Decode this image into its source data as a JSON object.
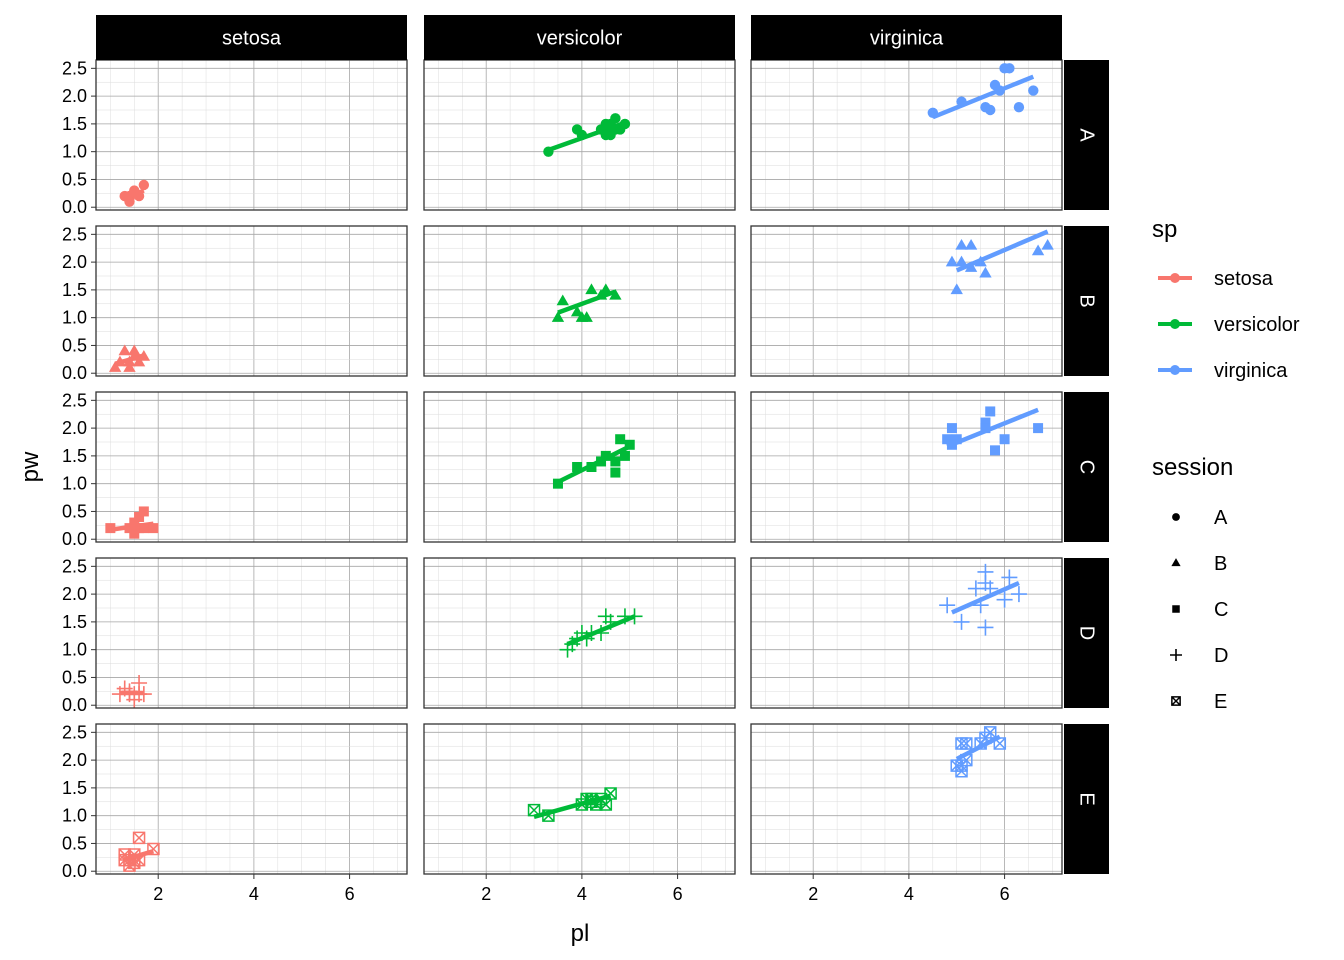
{
  "chart_data": {
    "type": "scatter",
    "xlabel": "pl",
    "ylabel": "pw",
    "xlim": [
      0.7,
      7.2
    ],
    "ylim": [
      -0.05,
      2.65
    ],
    "x_ticks": [
      2,
      4,
      6
    ],
    "y_ticks": [
      0.0,
      0.5,
      1.0,
      1.5,
      2.0,
      2.5
    ],
    "y_tick_labels": [
      "0.0",
      "0.5",
      "1.0",
      "1.5",
      "2.0",
      "2.5"
    ],
    "x_tick_labels": [
      "2",
      "4",
      "6"
    ],
    "col_facets": [
      "setosa",
      "versicolor",
      "virginica"
    ],
    "row_facets": [
      "A",
      "B",
      "C",
      "D",
      "E"
    ],
    "grid": true,
    "legend_placement": "right",
    "legends": {
      "color": {
        "title": "sp",
        "items": [
          {
            "label": "setosa",
            "color": "#F8766D"
          },
          {
            "label": "versicolor",
            "color": "#00BA38"
          },
          {
            "label": "virginica",
            "color": "#619CFF"
          }
        ]
      },
      "shape": {
        "title": "session",
        "items": [
          {
            "label": "A",
            "shape": "circle"
          },
          {
            "label": "B",
            "shape": "triangle"
          },
          {
            "label": "C",
            "shape": "square"
          },
          {
            "label": "D",
            "shape": "plus"
          },
          {
            "label": "E",
            "shape": "square-cross"
          }
        ]
      }
    },
    "panels": [
      {
        "row": "A",
        "col": "setosa",
        "color": "#F8766D",
        "shape": "circle",
        "points": [
          [
            1.3,
            0.2
          ],
          [
            1.4,
            0.2
          ],
          [
            1.5,
            0.3
          ],
          [
            1.4,
            0.15
          ],
          [
            1.7,
            0.4
          ],
          [
            1.5,
            0.25
          ],
          [
            1.4,
            0.1
          ],
          [
            1.6,
            0.2
          ]
        ],
        "fit": [
          [
            1.3,
            0.16
          ],
          [
            1.7,
            0.3
          ]
        ]
      },
      {
        "row": "A",
        "col": "versicolor",
        "color": "#00BA38",
        "shape": "circle",
        "points": [
          [
            3.3,
            1.0
          ],
          [
            3.9,
            1.4
          ],
          [
            4.0,
            1.3
          ],
          [
            4.4,
            1.4
          ],
          [
            4.5,
            1.5
          ],
          [
            4.6,
            1.5
          ],
          [
            4.7,
            1.6
          ],
          [
            4.5,
            1.3
          ],
          [
            4.6,
            1.3
          ],
          [
            4.8,
            1.4
          ],
          [
            4.9,
            1.5
          ],
          [
            4.7,
            1.4
          ]
        ],
        "fit": [
          [
            3.3,
            1.03
          ],
          [
            4.9,
            1.52
          ]
        ]
      },
      {
        "row": "A",
        "col": "virginica",
        "color": "#619CFF",
        "shape": "circle",
        "points": [
          [
            4.5,
            1.7
          ],
          [
            5.1,
            1.9
          ],
          [
            5.6,
            1.8
          ],
          [
            5.8,
            2.2
          ],
          [
            5.9,
            2.1
          ],
          [
            6.0,
            2.5
          ],
          [
            6.1,
            2.5
          ],
          [
            6.3,
            1.8
          ],
          [
            6.6,
            2.1
          ],
          [
            5.7,
            1.75
          ]
        ],
        "fit": [
          [
            4.5,
            1.62
          ],
          [
            6.6,
            2.35
          ]
        ]
      },
      {
        "row": "B",
        "col": "setosa",
        "color": "#F8766D",
        "shape": "triangle",
        "points": [
          [
            1.1,
            0.1
          ],
          [
            1.3,
            0.4
          ],
          [
            1.4,
            0.2
          ],
          [
            1.5,
            0.3
          ],
          [
            1.5,
            0.4
          ],
          [
            1.6,
            0.2
          ],
          [
            1.7,
            0.3
          ],
          [
            1.4,
            0.1
          ],
          [
            1.2,
            0.2
          ]
        ],
        "fit": [
          [
            1.1,
            0.17
          ],
          [
            1.7,
            0.32
          ]
        ]
      },
      {
        "row": "B",
        "col": "versicolor",
        "color": "#00BA38",
        "shape": "triangle",
        "points": [
          [
            3.5,
            1.0
          ],
          [
            3.6,
            1.3
          ],
          [
            3.9,
            1.1
          ],
          [
            4.0,
            1.0
          ],
          [
            4.2,
            1.5
          ],
          [
            4.4,
            1.4
          ],
          [
            4.5,
            1.5
          ],
          [
            4.7,
            1.4
          ],
          [
            4.1,
            1.0
          ]
        ],
        "fit": [
          [
            3.5,
            1.09
          ],
          [
            4.7,
            1.47
          ]
        ]
      },
      {
        "row": "B",
        "col": "virginica",
        "color": "#619CFF",
        "shape": "triangle",
        "points": [
          [
            4.9,
            2.0
          ],
          [
            5.0,
            1.5
          ],
          [
            5.1,
            2.3
          ],
          [
            5.1,
            2.0
          ],
          [
            5.3,
            2.3
          ],
          [
            5.5,
            2.0
          ],
          [
            5.6,
            1.8
          ],
          [
            6.7,
            2.2
          ],
          [
            6.9,
            2.3
          ],
          [
            5.3,
            1.9
          ]
        ],
        "fit": [
          [
            5.0,
            1.85
          ],
          [
            6.9,
            2.55
          ]
        ]
      },
      {
        "row": "C",
        "col": "setosa",
        "color": "#F8766D",
        "shape": "square",
        "points": [
          [
            1.0,
            0.2
          ],
          [
            1.4,
            0.2
          ],
          [
            1.5,
            0.3
          ],
          [
            1.6,
            0.2
          ],
          [
            1.6,
            0.4
          ],
          [
            1.7,
            0.5
          ],
          [
            1.5,
            0.1
          ],
          [
            1.9,
            0.2
          ],
          [
            1.7,
            0.2
          ],
          [
            1.5,
            0.2
          ]
        ],
        "fit": [
          [
            1.0,
            0.17
          ],
          [
            1.9,
            0.28
          ]
        ]
      },
      {
        "row": "C",
        "col": "versicolor",
        "color": "#00BA38",
        "shape": "square",
        "points": [
          [
            3.5,
            1.0
          ],
          [
            3.9,
            1.3
          ],
          [
            4.2,
            1.3
          ],
          [
            4.4,
            1.4
          ],
          [
            4.5,
            1.5
          ],
          [
            4.7,
            1.2
          ],
          [
            4.7,
            1.4
          ],
          [
            4.8,
            1.8
          ],
          [
            4.9,
            1.5
          ],
          [
            5.0,
            1.7
          ]
        ],
        "fit": [
          [
            3.5,
            1.03
          ],
          [
            5.0,
            1.67
          ]
        ]
      },
      {
        "row": "C",
        "col": "virginica",
        "color": "#619CFF",
        "shape": "square",
        "points": [
          [
            4.8,
            1.8
          ],
          [
            4.9,
            2.0
          ],
          [
            5.0,
            1.8
          ],
          [
            5.6,
            2.1
          ],
          [
            5.7,
            2.3
          ],
          [
            5.6,
            2.0
          ],
          [
            5.8,
            1.6
          ],
          [
            6.0,
            1.8
          ],
          [
            6.7,
            2.0
          ],
          [
            4.9,
            1.7
          ]
        ],
        "fit": [
          [
            4.8,
            1.67
          ],
          [
            6.7,
            2.33
          ]
        ]
      },
      {
        "row": "D",
        "col": "setosa",
        "color": "#F8766D",
        "shape": "plus",
        "points": [
          [
            1.2,
            0.2
          ],
          [
            1.3,
            0.3
          ],
          [
            1.4,
            0.2
          ],
          [
            1.5,
            0.2
          ],
          [
            1.5,
            0.1
          ],
          [
            1.6,
            0.4
          ],
          [
            1.6,
            0.2
          ],
          [
            1.7,
            0.2
          ],
          [
            1.4,
            0.25
          ]
        ],
        "fit": [
          [
            1.2,
            0.22
          ],
          [
            1.7,
            0.22
          ]
        ]
      },
      {
        "row": "D",
        "col": "versicolor",
        "color": "#00BA38",
        "shape": "plus",
        "points": [
          [
            3.7,
            1.0
          ],
          [
            3.8,
            1.1
          ],
          [
            3.9,
            1.2
          ],
          [
            4.0,
            1.3
          ],
          [
            4.2,
            1.3
          ],
          [
            4.4,
            1.3
          ],
          [
            4.5,
            1.6
          ],
          [
            4.6,
            1.5
          ],
          [
            4.9,
            1.6
          ],
          [
            5.1,
            1.6
          ],
          [
            4.1,
            1.2
          ]
        ],
        "fit": [
          [
            3.7,
            1.1
          ],
          [
            5.1,
            1.6
          ]
        ]
      },
      {
        "row": "D",
        "col": "virginica",
        "color": "#619CFF",
        "shape": "plus",
        "points": [
          [
            4.8,
            1.8
          ],
          [
            5.1,
            1.5
          ],
          [
            5.4,
            2.1
          ],
          [
            5.5,
            1.8
          ],
          [
            5.6,
            2.4
          ],
          [
            5.6,
            1.4
          ],
          [
            5.7,
            2.1
          ],
          [
            5.6,
            2.2
          ],
          [
            6.0,
            1.9
          ],
          [
            6.1,
            2.3
          ],
          [
            6.3,
            2.0
          ]
        ],
        "fit": [
          [
            4.9,
            1.67
          ],
          [
            6.3,
            2.2
          ]
        ]
      },
      {
        "row": "E",
        "col": "setosa",
        "color": "#F8766D",
        "shape": "square-cross",
        "points": [
          [
            1.3,
            0.3
          ],
          [
            1.3,
            0.2
          ],
          [
            1.4,
            0.2
          ],
          [
            1.4,
            0.1
          ],
          [
            1.5,
            0.2
          ],
          [
            1.5,
            0.3
          ],
          [
            1.6,
            0.2
          ],
          [
            1.6,
            0.6
          ],
          [
            1.9,
            0.4
          ],
          [
            1.5,
            0.15
          ]
        ],
        "fit": [
          [
            1.3,
            0.21
          ],
          [
            1.9,
            0.36
          ]
        ]
      },
      {
        "row": "E",
        "col": "versicolor",
        "color": "#00BA38",
        "shape": "square-cross",
        "points": [
          [
            3.0,
            1.1
          ],
          [
            3.3,
            1.0
          ],
          [
            4.0,
            1.2
          ],
          [
            4.1,
            1.3
          ],
          [
            4.2,
            1.3
          ],
          [
            4.3,
            1.2
          ],
          [
            4.4,
            1.3
          ],
          [
            4.5,
            1.2
          ],
          [
            4.6,
            1.4
          ],
          [
            4.2,
            1.25
          ]
        ],
        "fit": [
          [
            3.0,
            0.98
          ],
          [
            4.6,
            1.36
          ]
        ]
      },
      {
        "row": "E",
        "col": "virginica",
        "color": "#619CFF",
        "shape": "square-cross",
        "points": [
          [
            5.0,
            1.9
          ],
          [
            5.1,
            2.3
          ],
          [
            5.2,
            2.3
          ],
          [
            5.1,
            1.8
          ],
          [
            5.2,
            2.0
          ],
          [
            5.6,
            2.4
          ],
          [
            5.7,
            2.5
          ],
          [
            5.5,
            2.3
          ],
          [
            5.9,
            2.3
          ],
          [
            5.1,
            1.9
          ]
        ],
        "fit": [
          [
            5.0,
            2.02
          ],
          [
            5.9,
            2.42
          ]
        ]
      }
    ]
  }
}
